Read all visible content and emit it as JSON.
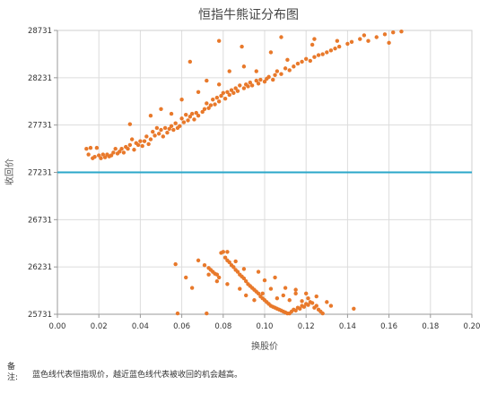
{
  "chart_data": {
    "type": "scatter",
    "title": "恒指牛熊证分布图",
    "xlabel": "换股价",
    "ylabel": "收回价",
    "xlim": [
      0.0,
      0.2
    ],
    "ylim": [
      25731,
      28731
    ],
    "x_ticks": [
      "0.00",
      "0.02",
      "0.04",
      "0.06",
      "0.08",
      "0.10",
      "0.12",
      "0.14",
      "0.16",
      "0.18",
      "0.20"
    ],
    "y_ticks": [
      "25731",
      "26231",
      "26731",
      "27231",
      "27731",
      "28231",
      "28731"
    ],
    "grid": true,
    "reference_line": {
      "y": 27231,
      "color": "#2aa7c9"
    },
    "series": [
      {
        "color": "#e8792b",
        "points": [
          [
            0.014,
            27480
          ],
          [
            0.015,
            27420
          ],
          [
            0.016,
            27490
          ],
          [
            0.017,
            27380
          ],
          [
            0.018,
            27395
          ],
          [
            0.019,
            27490
          ],
          [
            0.02,
            27410
          ],
          [
            0.021,
            27380
          ],
          [
            0.022,
            27420
          ],
          [
            0.023,
            27390
          ],
          [
            0.024,
            27420
          ],
          [
            0.025,
            27400
          ],
          [
            0.026,
            27410
          ],
          [
            0.027,
            27440
          ],
          [
            0.028,
            27480
          ],
          [
            0.029,
            27430
          ],
          [
            0.03,
            27450
          ],
          [
            0.031,
            27480
          ],
          [
            0.032,
            27440
          ],
          [
            0.033,
            27500
          ],
          [
            0.034,
            27480
          ],
          [
            0.035,
            27520
          ],
          [
            0.036,
            27580
          ],
          [
            0.037,
            27470
          ],
          [
            0.038,
            27540
          ],
          [
            0.039,
            27520
          ],
          [
            0.04,
            27560
          ],
          [
            0.041,
            27510
          ],
          [
            0.042,
            27560
          ],
          [
            0.043,
            27610
          ],
          [
            0.044,
            27530
          ],
          [
            0.045,
            27580
          ],
          [
            0.046,
            27660
          ],
          [
            0.047,
            27620
          ],
          [
            0.048,
            27700
          ],
          [
            0.049,
            27640
          ],
          [
            0.05,
            27680
          ],
          [
            0.051,
            27610
          ],
          [
            0.052,
            27700
          ],
          [
            0.053,
            27650
          ],
          [
            0.054,
            27690
          ],
          [
            0.055,
            27720
          ],
          [
            0.056,
            27680
          ],
          [
            0.057,
            27750
          ],
          [
            0.058,
            27700
          ],
          [
            0.059,
            27720
          ],
          [
            0.06,
            27800
          ],
          [
            0.061,
            27760
          ],
          [
            0.062,
            27840
          ],
          [
            0.063,
            27780
          ],
          [
            0.064,
            27820
          ],
          [
            0.065,
            27850
          ],
          [
            0.066,
            27790
          ],
          [
            0.067,
            27860
          ],
          [
            0.068,
            27830
          ],
          [
            0.07,
            27870
          ],
          [
            0.071,
            27900
          ],
          [
            0.072,
            27960
          ],
          [
            0.073,
            27910
          ],
          [
            0.074,
            27940
          ],
          [
            0.075,
            28000
          ],
          [
            0.076,
            27950
          ],
          [
            0.077,
            28020
          ],
          [
            0.078,
            27980
          ],
          [
            0.079,
            28040
          ],
          [
            0.08,
            28070
          ],
          [
            0.081,
            28010
          ],
          [
            0.082,
            28080
          ],
          [
            0.083,
            28050
          ],
          [
            0.084,
            28100
          ],
          [
            0.085,
            28070
          ],
          [
            0.086,
            28120
          ],
          [
            0.087,
            28090
          ],
          [
            0.088,
            28150
          ],
          [
            0.09,
            28120
          ],
          [
            0.091,
            28160
          ],
          [
            0.092,
            28140
          ],
          [
            0.093,
            28180
          ],
          [
            0.094,
            28150
          ],
          [
            0.096,
            28200
          ],
          [
            0.097,
            28170
          ],
          [
            0.098,
            28210
          ],
          [
            0.1,
            28190
          ],
          [
            0.101,
            28220
          ],
          [
            0.102,
            28240
          ],
          [
            0.104,
            28210
          ],
          [
            0.105,
            28260
          ],
          [
            0.106,
            28300
          ],
          [
            0.108,
            28270
          ],
          [
            0.11,
            28330
          ],
          [
            0.112,
            28310
          ],
          [
            0.114,
            28350
          ],
          [
            0.116,
            28380
          ],
          [
            0.118,
            28400
          ],
          [
            0.12,
            28430
          ],
          [
            0.122,
            28410
          ],
          [
            0.124,
            28450
          ],
          [
            0.126,
            28470
          ],
          [
            0.128,
            28480
          ],
          [
            0.13,
            28500
          ],
          [
            0.132,
            28520
          ],
          [
            0.134,
            28540
          ],
          [
            0.136,
            28560
          ],
          [
            0.14,
            28590
          ],
          [
            0.142,
            28610
          ],
          [
            0.146,
            28640
          ],
          [
            0.15,
            28620
          ],
          [
            0.154,
            28660
          ],
          [
            0.158,
            28690
          ],
          [
            0.162,
            28710
          ],
          [
            0.166,
            28720
          ],
          [
            0.035,
            27740
          ],
          [
            0.045,
            27830
          ],
          [
            0.05,
            27900
          ],
          [
            0.055,
            27850
          ],
          [
            0.06,
            28000
          ],
          [
            0.068,
            28080
          ],
          [
            0.072,
            28200
          ],
          [
            0.078,
            28160
          ],
          [
            0.083,
            28300
          ],
          [
            0.09,
            28350
          ],
          [
            0.096,
            28300
          ],
          [
            0.103,
            28500
          ],
          [
            0.111,
            28420
          ],
          [
            0.123,
            28580
          ],
          [
            0.135,
            28620
          ],
          [
            0.148,
            28680
          ],
          [
            0.16,
            28600
          ],
          [
            0.064,
            28400
          ],
          [
            0.078,
            28620
          ],
          [
            0.089,
            28560
          ],
          [
            0.108,
            28660
          ],
          [
            0.124,
            28640
          ],
          [
            0.057,
            26260
          ],
          [
            0.062,
            26120
          ],
          [
            0.065,
            26010
          ],
          [
            0.068,
            26300
          ],
          [
            0.071,
            26250
          ],
          [
            0.073,
            26220
          ],
          [
            0.074,
            26200
          ],
          [
            0.075,
            26180
          ],
          [
            0.076,
            26160
          ],
          [
            0.077,
            26150
          ],
          [
            0.078,
            26120
          ],
          [
            0.079,
            26380
          ],
          [
            0.08,
            26390
          ],
          [
            0.081,
            26330
          ],
          [
            0.082,
            26300
          ],
          [
            0.083,
            26280
          ],
          [
            0.084,
            26250
          ],
          [
            0.085,
            26230
          ],
          [
            0.086,
            26200
          ],
          [
            0.087,
            26180
          ],
          [
            0.088,
            26150
          ],
          [
            0.089,
            26130
          ],
          [
            0.09,
            26110
          ],
          [
            0.091,
            26080
          ],
          [
            0.092,
            26050
          ],
          [
            0.093,
            26030
          ],
          [
            0.094,
            26010
          ],
          [
            0.095,
            25990
          ],
          [
            0.096,
            25970
          ],
          [
            0.097,
            25950
          ],
          [
            0.098,
            25920
          ],
          [
            0.099,
            25900
          ],
          [
            0.1,
            25880
          ],
          [
            0.101,
            25860
          ],
          [
            0.102,
            25840
          ],
          [
            0.103,
            25820
          ],
          [
            0.104,
            25810
          ],
          [
            0.105,
            25800
          ],
          [
            0.106,
            25790
          ],
          [
            0.107,
            25780
          ],
          [
            0.108,
            25770
          ],
          [
            0.109,
            25760
          ],
          [
            0.11,
            25750
          ],
          [
            0.111,
            25740
          ],
          [
            0.112,
            25740
          ],
          [
            0.113,
            25760
          ],
          [
            0.114,
            25780
          ],
          [
            0.115,
            25770
          ],
          [
            0.116,
            25800
          ],
          [
            0.117,
            25790
          ],
          [
            0.118,
            25820
          ],
          [
            0.119,
            25810
          ],
          [
            0.12,
            25840
          ],
          [
            0.121,
            25830
          ],
          [
            0.122,
            25860
          ],
          [
            0.123,
            25850
          ],
          [
            0.124,
            25800
          ],
          [
            0.125,
            25820
          ],
          [
            0.126,
            25780
          ],
          [
            0.127,
            25760
          ],
          [
            0.128,
            25740
          ],
          [
            0.13,
            25860
          ],
          [
            0.132,
            25820
          ],
          [
            0.143,
            25790
          ],
          [
            0.088,
            26000
          ],
          [
            0.091,
            25930
          ],
          [
            0.095,
            25880
          ],
          [
            0.099,
            25950
          ],
          [
            0.103,
            26000
          ],
          [
            0.106,
            25900
          ],
          [
            0.109,
            25930
          ],
          [
            0.112,
            25880
          ],
          [
            0.115,
            25950
          ],
          [
            0.118,
            25870
          ],
          [
            0.121,
            25900
          ],
          [
            0.073,
            26150
          ],
          [
            0.077,
            26080
          ],
          [
            0.082,
            26050
          ],
          [
            0.086,
            26290
          ],
          [
            0.09,
            26210
          ],
          [
            0.097,
            26180
          ],
          [
            0.1,
            26090
          ],
          [
            0.105,
            26120
          ],
          [
            0.11,
            26010
          ],
          [
            0.115,
            25990
          ],
          [
            0.12,
            25950
          ],
          [
            0.125,
            25920
          ],
          [
            0.058,
            25740
          ],
          [
            0.072,
            25740
          ],
          [
            0.082,
            26390
          ]
        ]
      }
    ]
  },
  "note": {
    "label": "备注:",
    "text": "蓝色线代表恒指现价，越近蓝色线代表被收回的机会越高。"
  },
  "colors": {
    "grid": "#dcdcdc",
    "axes": "#999999",
    "plot_border": "#cfcfcf",
    "reference": "#2aa7c9",
    "points": "#e8792b"
  }
}
